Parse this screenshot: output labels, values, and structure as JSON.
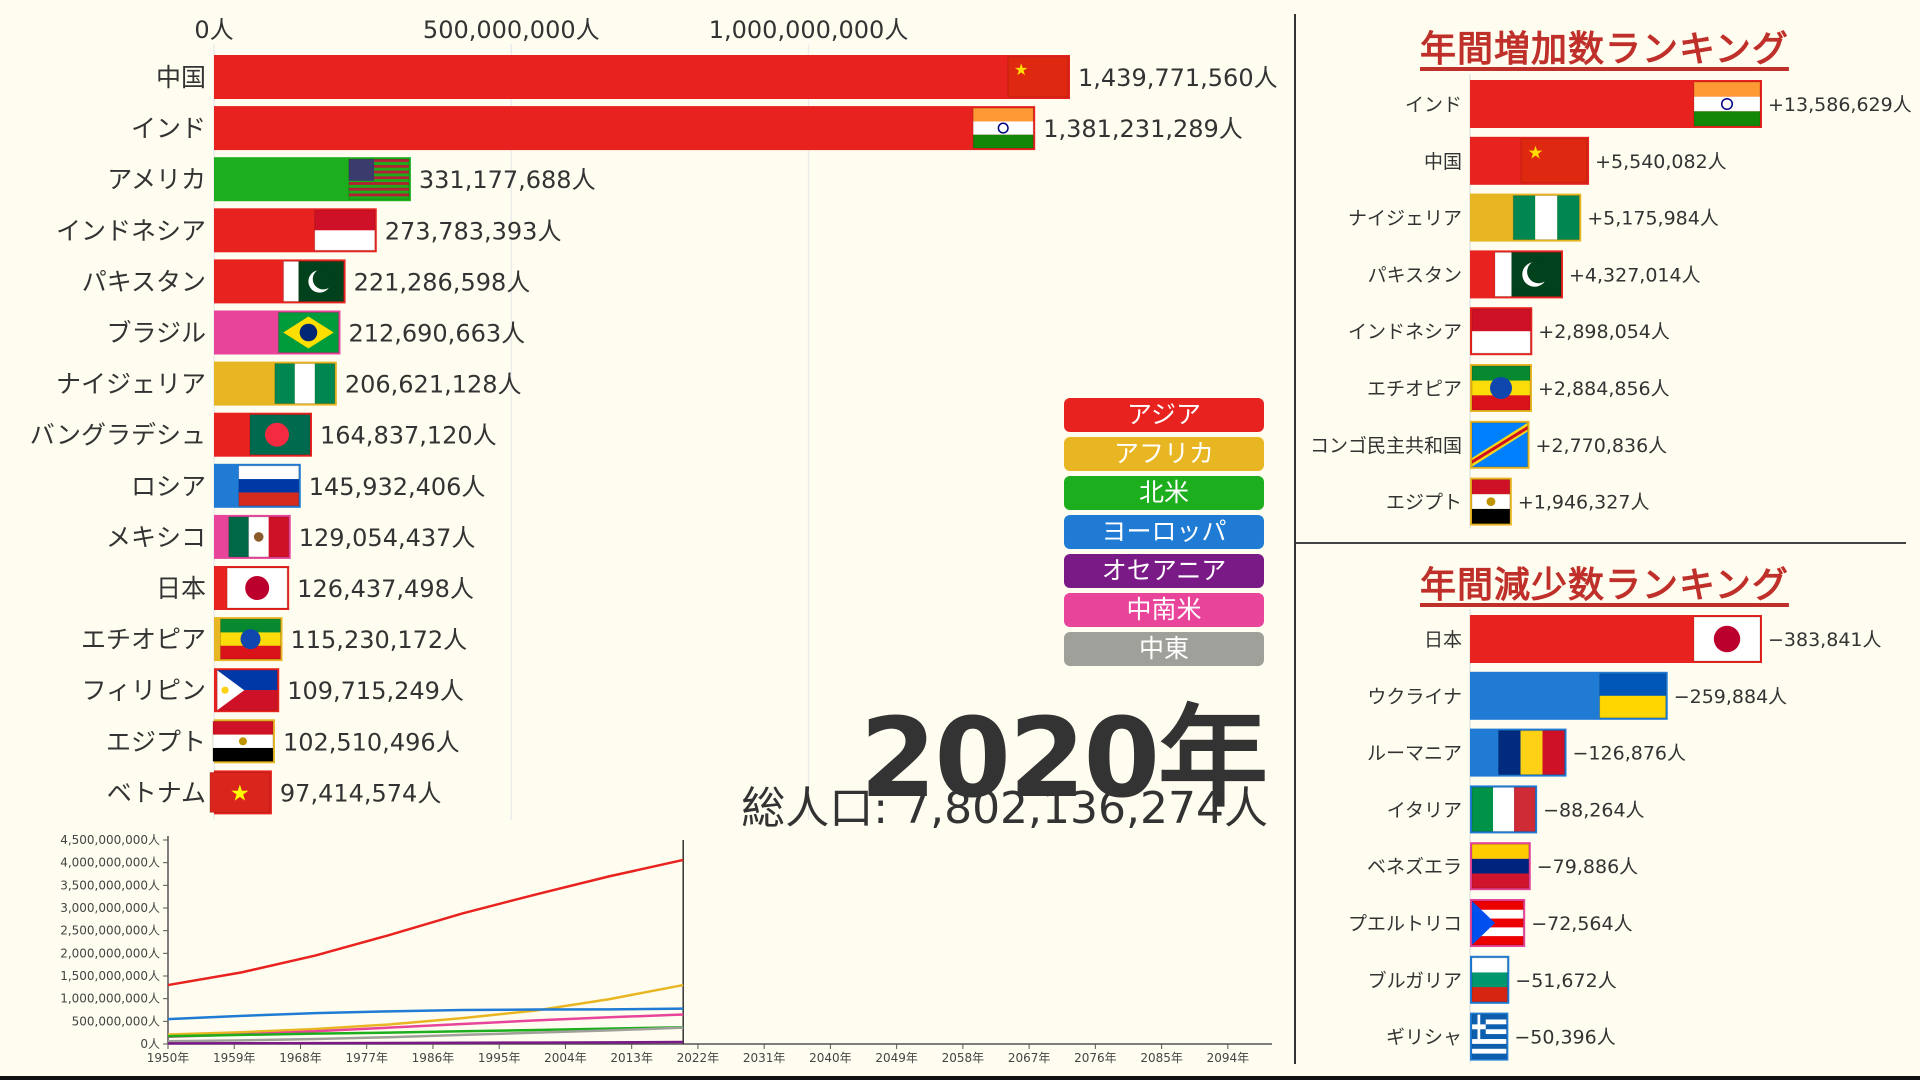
{
  "year_label": "2020年",
  "total_label": "総人口: 7,802,136,274人",
  "legend": [
    {
      "label": "アジア",
      "color": "#e8231f"
    },
    {
      "label": "アフリカ",
      "color": "#e9b623"
    },
    {
      "label": "北米",
      "color": "#1cae1c"
    },
    {
      "label": "ヨーロッパ",
      "color": "#1f7bd4"
    },
    {
      "label": "オセアニア",
      "color": "#7a1a86"
    },
    {
      "label": "中南米",
      "color": "#e8449a"
    },
    {
      "label": "中東",
      "color": "#a0a09a"
    }
  ],
  "panels": {
    "increase_title": "年間増加数ランキング",
    "decrease_title": "年間減少数ランキング"
  },
  "chart_data": [
    {
      "type": "bar",
      "orientation": "horizontal",
      "title": "",
      "xlim": [
        0,
        1439771560
      ],
      "xticks": [
        {
          "value": 0,
          "label": "0人"
        },
        {
          "value": 500000000,
          "label": "500,000,000人"
        },
        {
          "value": 1000000000,
          "label": "1,000,000,000人"
        }
      ],
      "bars": [
        {
          "name": "中国",
          "value": 1439771560,
          "label": "1,439,771,560人",
          "region": "アジア",
          "flag": "china"
        },
        {
          "name": "インド",
          "value": 1381231289,
          "label": "1,381,231,289人",
          "region": "アジア",
          "flag": "india"
        },
        {
          "name": "アメリカ",
          "value": 331177688,
          "label": "331,177,688人",
          "region": "北米",
          "flag": "usa"
        },
        {
          "name": "インドネシア",
          "value": 273783393,
          "label": "273,783,393人",
          "region": "アジア",
          "flag": "indonesia"
        },
        {
          "name": "パキスタン",
          "value": 221286598,
          "label": "221,286,598人",
          "region": "アジア",
          "flag": "pakistan"
        },
        {
          "name": "ブラジル",
          "value": 212690663,
          "label": "212,690,663人",
          "region": "中南米",
          "flag": "brazil"
        },
        {
          "name": "ナイジェリア",
          "value": 206621128,
          "label": "206,621,128人",
          "region": "アフリカ",
          "flag": "nigeria"
        },
        {
          "name": "バングラデシュ",
          "value": 164837120,
          "label": "164,837,120人",
          "region": "アジア",
          "flag": "bangladesh"
        },
        {
          "name": "ロシア",
          "value": 145932406,
          "label": "145,932,406人",
          "region": "ヨーロッパ",
          "flag": "russia"
        },
        {
          "name": "メキシコ",
          "value": 129054437,
          "label": "129,054,437人",
          "region": "中南米",
          "flag": "mexico"
        },
        {
          "name": "日本",
          "value": 126437498,
          "label": "126,437,498人",
          "region": "アジア",
          "flag": "japan"
        },
        {
          "name": "エチオピア",
          "value": 115230172,
          "label": "115,230,172人",
          "region": "アフリカ",
          "flag": "ethiopia"
        },
        {
          "name": "フィリピン",
          "value": 109715249,
          "label": "109,715,249人",
          "region": "アジア",
          "flag": "philippines"
        },
        {
          "name": "エジプト",
          "value": 102510496,
          "label": "102,510,496人",
          "region": "アフリカ",
          "flag": "egypt"
        },
        {
          "name": "ベトナム",
          "value": 97414574,
          "label": "97,414,574人",
          "region": "アジア",
          "flag": "vietnam"
        }
      ]
    },
    {
      "type": "bar",
      "orientation": "horizontal",
      "title": "年間増加数ランキング",
      "xlim": [
        0,
        13586629
      ],
      "bars": [
        {
          "name": "インド",
          "value": 13586629,
          "label": "+13,586,629人",
          "region": "アジア",
          "flag": "india"
        },
        {
          "name": "中国",
          "value": 5540082,
          "label": "+5,540,082人",
          "region": "アジア",
          "flag": "china"
        },
        {
          "name": "ナイジェリア",
          "value": 5175984,
          "label": "+5,175,984人",
          "region": "アフリカ",
          "flag": "nigeria"
        },
        {
          "name": "パキスタン",
          "value": 4327014,
          "label": "+4,327,014人",
          "region": "アジア",
          "flag": "pakistan"
        },
        {
          "name": "インドネシア",
          "value": 2898054,
          "label": "+2,898,054人",
          "region": "アジア",
          "flag": "indonesia"
        },
        {
          "name": "エチオピア",
          "value": 2884856,
          "label": "+2,884,856人",
          "region": "アフリカ",
          "flag": "ethiopia"
        },
        {
          "name": "コンゴ民主共和国",
          "value": 2770836,
          "label": "+2,770,836人",
          "region": "アフリカ",
          "flag": "drc"
        },
        {
          "name": "エジプト",
          "value": 1946327,
          "label": "+1,946,327人",
          "region": "アフリカ",
          "flag": "egypt"
        }
      ]
    },
    {
      "type": "bar",
      "orientation": "horizontal",
      "title": "年間減少数ランキング",
      "xlim": [
        0,
        383841
      ],
      "bars": [
        {
          "name": "日本",
          "value": 383841,
          "label": "−383,841人",
          "region": "アジア",
          "flag": "japan"
        },
        {
          "name": "ウクライナ",
          "value": 259884,
          "label": "−259,884人",
          "region": "ヨーロッパ",
          "flag": "ukraine"
        },
        {
          "name": "ルーマニア",
          "value": 126876,
          "label": "−126,876人",
          "region": "ヨーロッパ",
          "flag": "romania"
        },
        {
          "name": "イタリア",
          "value": 88264,
          "label": "−88,264人",
          "region": "ヨーロッパ",
          "flag": "italy"
        },
        {
          "name": "ベネズエラ",
          "value": 79886,
          "label": "−79,886人",
          "region": "中南米",
          "flag": "venezuela"
        },
        {
          "name": "プエルトリコ",
          "value": 72564,
          "label": "−72,564人",
          "region": "中南米",
          "flag": "puertorico"
        },
        {
          "name": "ブルガリア",
          "value": 51672,
          "label": "−51,672人",
          "region": "ヨーロッパ",
          "flag": "bulgaria"
        },
        {
          "name": "ギリシャ",
          "value": 50396,
          "label": "−50,396人",
          "region": "ヨーロッパ",
          "flag": "greece"
        }
      ]
    },
    {
      "type": "line",
      "title": "",
      "ylim": [
        0,
        4500000000
      ],
      "yticks": [
        "0人",
        "500,000,000人",
        "1,000,000,000人",
        "1,500,000,000人",
        "2,000,000,000人",
        "2,500,000,000人",
        "3,000,000,000人",
        "3,500,000,000人",
        "4,000,000,000人",
        "4,500,000,000人"
      ],
      "xlim": [
        1950,
        2100
      ],
      "xticks": [
        "1950年",
        "1959年",
        "1968年",
        "1977年",
        "1986年",
        "1995年",
        "2004年",
        "2013年",
        "2022年",
        "2031年",
        "2040年",
        "2049年",
        "2058年",
        "2067年",
        "2076年",
        "2085年",
        "2094年"
      ],
      "current_year": 2020,
      "x": [
        1950,
        1960,
        1970,
        1980,
        1990,
        2000,
        2010,
        2020
      ],
      "series": [
        {
          "region": "アジア",
          "color": "#e8231f",
          "values": [
            1300000000,
            1580000000,
            1950000000,
            2400000000,
            2880000000,
            3300000000,
            3700000000,
            4060000000
          ]
        },
        {
          "region": "アフリカ",
          "color": "#e9b623",
          "values": [
            210000000,
            260000000,
            330000000,
            430000000,
            570000000,
            740000000,
            990000000,
            1300000000
          ]
        },
        {
          "region": "ヨーロッパ",
          "color": "#1f7bd4",
          "values": [
            550000000,
            620000000,
            680000000,
            720000000,
            750000000,
            760000000,
            765000000,
            780000000
          ]
        },
        {
          "region": "中南米",
          "color": "#e8449a",
          "values": [
            160000000,
            210000000,
            280000000,
            360000000,
            440000000,
            520000000,
            590000000,
            650000000
          ]
        },
        {
          "region": "北米",
          "color": "#1cae1c",
          "values": [
            170000000,
            200000000,
            230000000,
            250000000,
            280000000,
            310000000,
            340000000,
            370000000
          ]
        },
        {
          "region": "中東",
          "color": "#a0a09a",
          "values": [
            60000000,
            80000000,
            110000000,
            150000000,
            200000000,
            250000000,
            300000000,
            360000000
          ]
        },
        {
          "region": "オセアニア",
          "color": "#7a1a86",
          "values": [
            13000000,
            16000000,
            20000000,
            23000000,
            27000000,
            31000000,
            37000000,
            43000000
          ]
        }
      ]
    }
  ]
}
